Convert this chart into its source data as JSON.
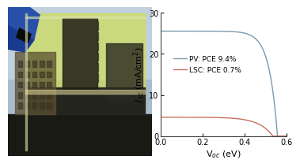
{
  "pv_jsc": 25.5,
  "pv_voc": 0.557,
  "pv_label": "PV: PCE 9.4%",
  "pv_color": "#7a9ab0",
  "lsc_jsc": 4.6,
  "lsc_voc": 0.535,
  "lsc_label": "LSC: PCE 0.7%",
  "lsc_color": "#c97060",
  "xlabel": "V$_{oc}$ (eV)",
  "ylabel": "$J_{sc}$ (mA/cm$^2$)",
  "xlim": [
    0.0,
    0.6
  ],
  "ylim": [
    0,
    30
  ],
  "yticks": [
    0,
    10,
    20,
    30
  ],
  "xticks": [
    0.0,
    0.2,
    0.4,
    0.6
  ],
  "legend_fontsize": 6.5,
  "axis_fontsize": 8,
  "tick_fontsize": 7,
  "photo_bg": "#c8c8b0",
  "sky_color": "#b8ccd8",
  "glass_color": "#d4e040",
  "glass_alpha": 0.6,
  "bldg_tall_color": "#2a2a20",
  "bldg_wide_color": "#4a4030",
  "ground_color": "#1a1a15",
  "finger_color": "#2850a8",
  "road_color": "#303025"
}
